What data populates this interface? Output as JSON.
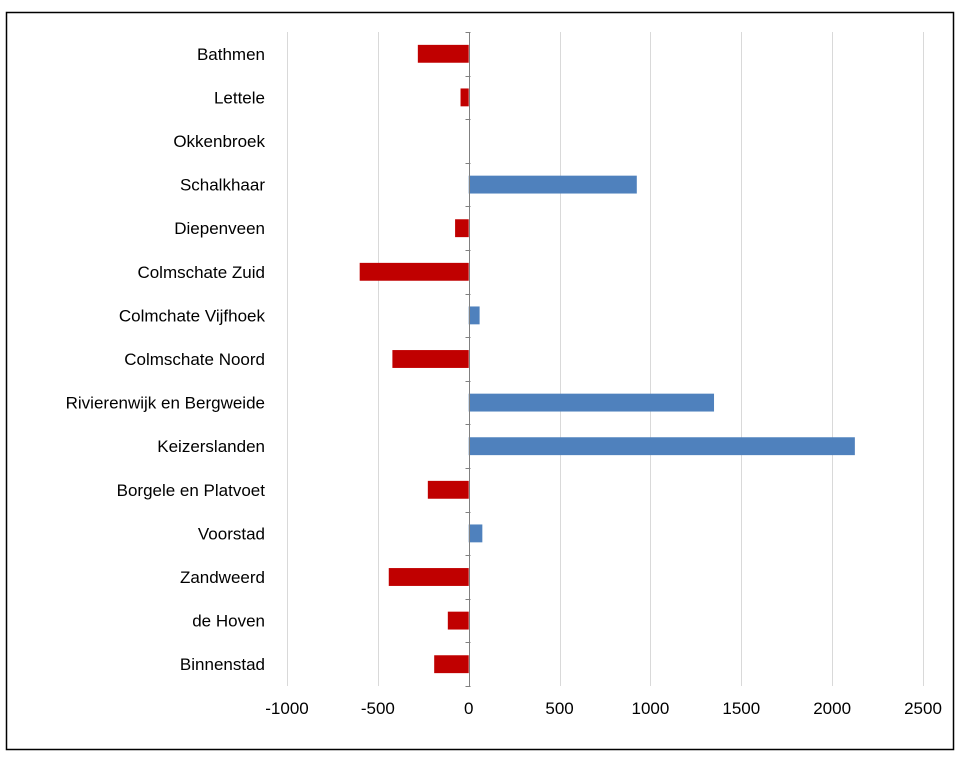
{
  "chart_data": {
    "type": "bar",
    "orientation": "horizontal",
    "title": "",
    "categories": [
      "Bathmen",
      "Lettele",
      "Okkenbroek",
      "Schalkhaar",
      "Diepenveen",
      "Colmschate Zuid",
      "Colmchate Vijfhoek",
      "Colmschate Noord",
      "Rivierenwijk en Bergweide",
      "Keizerslanden",
      "Borgele en Platvoet",
      "Voorstad",
      "Zandweerd",
      "de Hoven",
      "Binnenstad"
    ],
    "values": [
      -280,
      -45,
      0,
      925,
      -75,
      -600,
      60,
      -420,
      1350,
      2125,
      -225,
      75,
      -440,
      -115,
      -190
    ],
    "xlim": [
      -1000,
      2500
    ],
    "xticks": [
      -1000,
      -500,
      0,
      500,
      1000,
      1500,
      2000,
      2500
    ],
    "grid": "vertical",
    "legend": "none",
    "colors": {
      "positive": "#4f81bd",
      "negative": "#c00000",
      "grid": "#d9d9d9",
      "axis": "#808080"
    }
  }
}
